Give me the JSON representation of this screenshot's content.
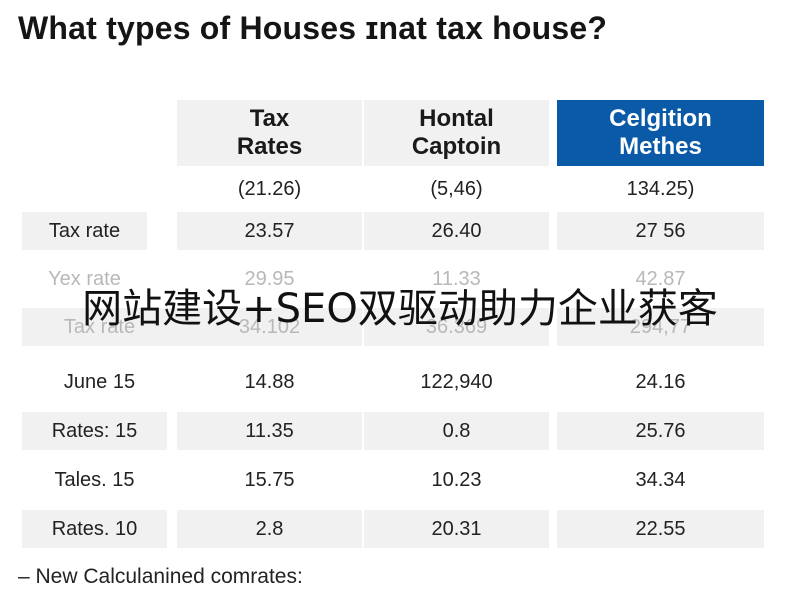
{
  "title": "What types of Houses ɪnat tax house?",
  "accent_color": "#0b5aa8",
  "table": {
    "headers": [
      "",
      "Tax\nRates",
      "Hontal\nCaptoin",
      "Celgition\nMethes"
    ],
    "subheader": [
      "",
      "(21.26)",
      "(5,46)",
      "134.25)"
    ],
    "rows": [
      [
        "Tax rate",
        "23.57",
        "26.40",
        "27 56"
      ],
      [
        "Yex rate",
        "29.95",
        "11.33",
        "42.87"
      ],
      [
        "Tax rate",
        "34.102",
        "36.369",
        "294,77"
      ],
      [
        "June 15",
        "14.88",
        "122,940",
        "24.16"
      ],
      [
        "Rates: 15",
        "11.35",
        "0.8",
        "25.76"
      ],
      [
        "Tales. 15",
        "15.75",
        "10.23",
        "34.34"
      ],
      [
        "Rates. 10",
        "2.8",
        "20.31",
        "22.55"
      ]
    ]
  },
  "watermark": "网站建设+SEO双驱动助力企业获客",
  "footnote": "– New Calculanined comrates:"
}
